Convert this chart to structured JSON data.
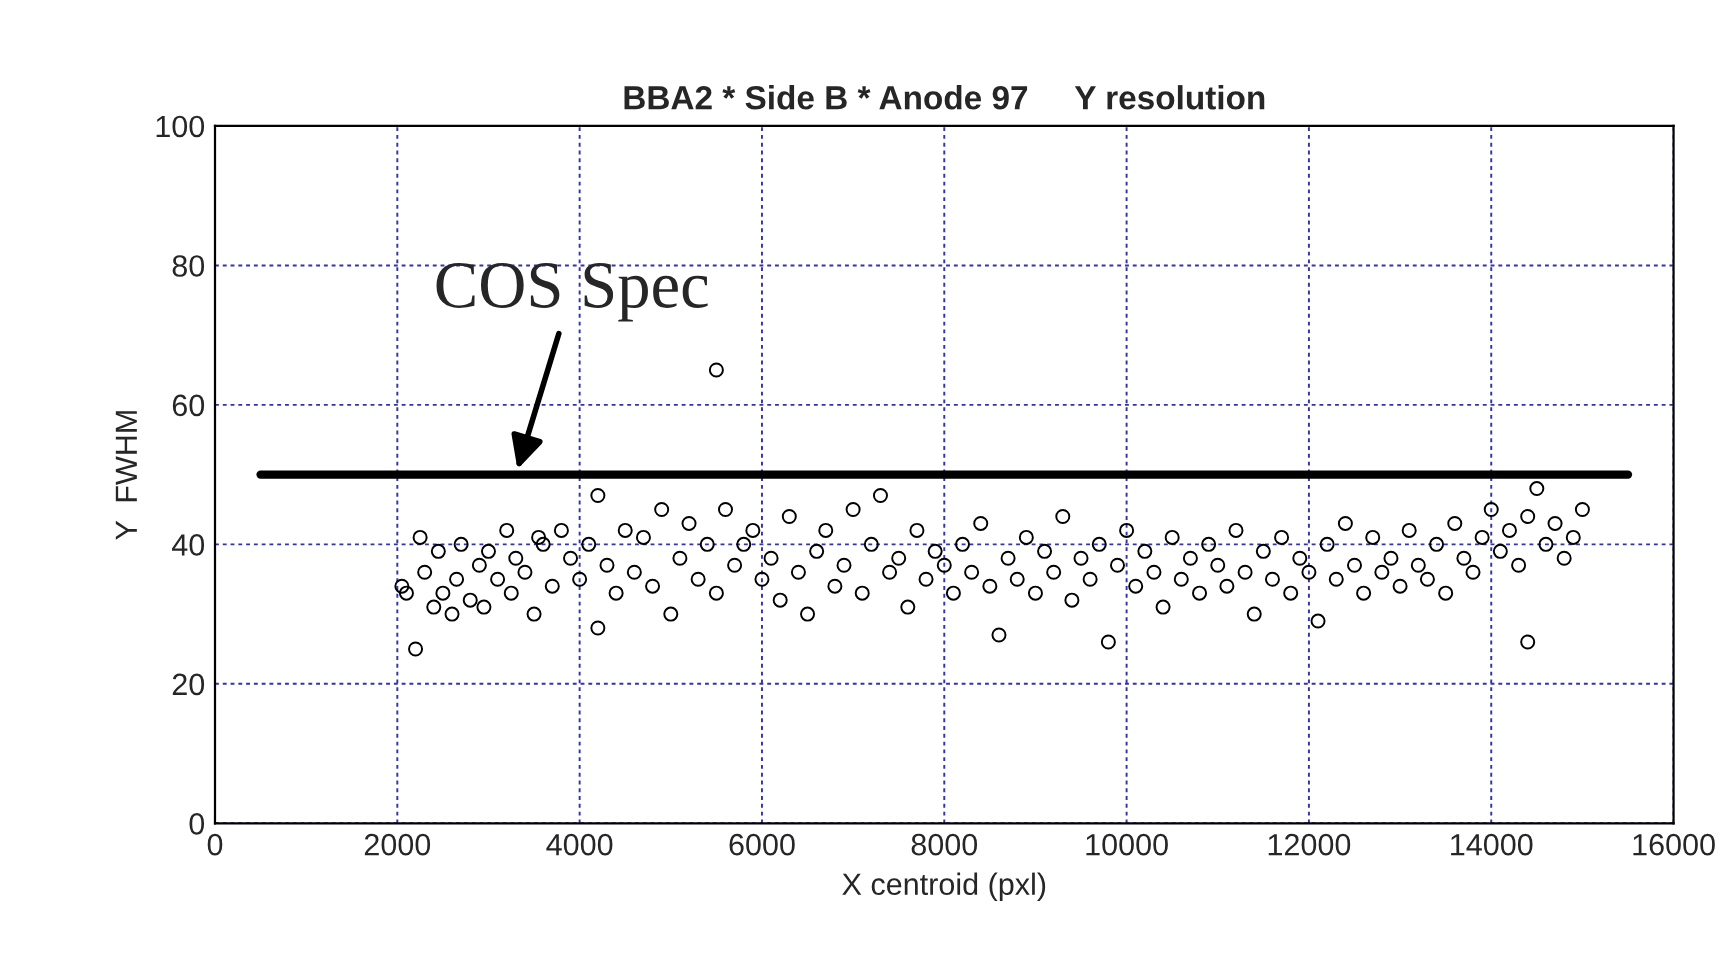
{
  "chart_data": {
    "type": "scatter",
    "title": "BBA2 * Side B * Anode 97     Y resolution",
    "xlabel": "X centroid (pxl)",
    "ylabel": "Y  FWHM",
    "xlim": [
      0,
      16000
    ],
    "xticks": [
      0,
      2000,
      4000,
      6000,
      8000,
      10000,
      12000,
      14000,
      16000
    ],
    "ylim": [
      0,
      100
    ],
    "yticks": [
      0,
      20,
      40,
      60,
      80,
      100
    ],
    "grid": true,
    "series": [
      {
        "color": "#000000",
        "marker": "circle",
        "x": [
          2050,
          2100,
          2200,
          2250,
          2300,
          2400,
          2450,
          2500,
          2600,
          2650,
          2700,
          2800,
          2900,
          2950,
          3000,
          3100,
          3200,
          3250,
          3300,
          3400,
          3500,
          3550,
          3600,
          3700,
          3800,
          3900,
          4000,
          4100,
          4200,
          4200,
          4300,
          4400,
          4500,
          4600,
          4700,
          4800,
          4900,
          5000,
          5100,
          5200,
          5300,
          5400,
          5500,
          5500,
          5600,
          5700,
          5800,
          5900,
          6000,
          6100,
          6200,
          6300,
          6400,
          6500,
          6600,
          6700,
          6800,
          6900,
          7000,
          7100,
          7200,
          7300,
          7400,
          7500,
          7600,
          7700,
          7800,
          7900,
          8000,
          8100,
          8200,
          8300,
          8400,
          8500,
          8600,
          8700,
          8800,
          8900,
          9000,
          9100,
          9200,
          9300,
          9400,
          9500,
          9600,
          9700,
          9800,
          9900,
          10000,
          10100,
          10200,
          10300,
          10400,
          10500,
          10600,
          10700,
          10800,
          10900,
          11000,
          11100,
          11200,
          11300,
          11400,
          11500,
          11600,
          11700,
          11800,
          11900,
          12000,
          12100,
          12200,
          12300,
          12400,
          12500,
          12600,
          12700,
          12800,
          12900,
          13000,
          13100,
          13200,
          13300,
          13400,
          13500,
          13600,
          13700,
          13800,
          13900,
          14000,
          14100,
          14200,
          14300,
          14400,
          14400,
          14500,
          14600,
          14700,
          14800,
          14900,
          15000
        ],
        "values": [
          34,
          33,
          25,
          41,
          36,
          31,
          39,
          33,
          30,
          35,
          40,
          32,
          37,
          31,
          39,
          35,
          42,
          33,
          38,
          36,
          30,
          41,
          40,
          34,
          42,
          38,
          35,
          40,
          47,
          28,
          37,
          33,
          42,
          36,
          41,
          34,
          45,
          30,
          38,
          43,
          35,
          40,
          65,
          33,
          45,
          37,
          40,
          42,
          35,
          38,
          32,
          44,
          36,
          30,
          39,
          42,
          34,
          37,
          45,
          33,
          40,
          47,
          36,
          38,
          31,
          42,
          35,
          39,
          37,
          33,
          40,
          36,
          43,
          34,
          27,
          38,
          35,
          41,
          33,
          39,
          36,
          44,
          32,
          38,
          35,
          40,
          26,
          37,
          42,
          34,
          39,
          36,
          31,
          41,
          35,
          38,
          33,
          40,
          37,
          34,
          42,
          36,
          30,
          39,
          35,
          41,
          33,
          38,
          36,
          29,
          40,
          35,
          43,
          37,
          33,
          41,
          36,
          38,
          34,
          42,
          37,
          35,
          40,
          33,
          43,
          38,
          36,
          41,
          45,
          39,
          42,
          37,
          26,
          44,
          48,
          40,
          43,
          38,
          41,
          45
        ]
      },
      {
        "type": "line",
        "color": "#000000",
        "x": [
          500,
          15500
        ],
        "values": [
          50,
          50
        ]
      }
    ],
    "annotations": [
      {
        "text": "COS Spec",
        "x": 3300,
        "y": 50
      }
    ]
  }
}
